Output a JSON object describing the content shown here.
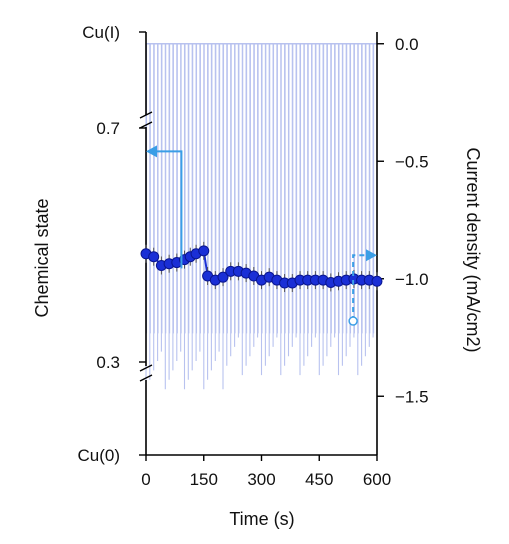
{
  "chart_data": {
    "type": "scatter",
    "xlabel": "Time (s)",
    "ylabel_left": "Chemical state",
    "ylabel_right": "Current density (mA/cm2)",
    "xlim": [
      0,
      600
    ],
    "xticks": [
      0,
      150,
      300,
      450,
      600
    ],
    "left_axis": {
      "ticks": [
        {
          "value": 0.0,
          "label": "Cu(0)"
        },
        {
          "value": 0.3,
          "label": "0.3"
        },
        {
          "value": 0.7,
          "label": "0.7"
        },
        {
          "value": 1.0,
          "label": "Cu(I)"
        }
      ],
      "breaks": [
        0.3,
        0.7
      ]
    },
    "right_axis": {
      "ylim": [
        -1.75,
        0.05
      ],
      "ticks": [
        0.0,
        -0.5,
        -1.0,
        -1.5
      ],
      "tick_labels": [
        "0.0",
        "−0.5",
        "−1.0",
        "−1.5"
      ]
    },
    "colors": {
      "chemical_state": "#1a2fd6",
      "current_density": "#b8c2ef",
      "arrow": "#3a9ee6"
    },
    "series": [
      {
        "axis": "left",
        "marker": "circle",
        "x": [
          0,
          20,
          40,
          60,
          80,
          100,
          115,
          130,
          150,
          160,
          180,
          200,
          220,
          240,
          260,
          280,
          300,
          320,
          340,
          360,
          380,
          400,
          420,
          440,
          460,
          480,
          500,
          520,
          540,
          560,
          580,
          600
        ],
        "values": [
          0.485,
          0.48,
          0.465,
          0.468,
          0.47,
          0.475,
          0.48,
          0.485,
          0.49,
          0.447,
          0.44,
          0.445,
          0.455,
          0.455,
          0.452,
          0.447,
          0.44,
          0.445,
          0.44,
          0.435,
          0.435,
          0.44,
          0.44,
          0.44,
          0.44,
          0.436,
          0.438,
          0.44,
          0.442,
          0.44,
          0.44,
          0.438
        ]
      },
      {
        "axis": "right",
        "style": "pulsed current trace",
        "pulse_period_s": 10,
        "baseline": 0.0,
        "pulse_value": -1.23,
        "pulse_min": -1.47
      }
    ],
    "annotations": [
      {
        "type": "arrow",
        "target_axis": "left",
        "style": "solid",
        "from": [
          92,
          0.46
        ],
        "to": [
          0,
          0.66
        ]
      },
      {
        "type": "arrow",
        "target_axis": "right",
        "style": "dashed",
        "from": [
          538,
          -1.18
        ],
        "to": [
          600,
          -0.9
        ]
      }
    ]
  }
}
